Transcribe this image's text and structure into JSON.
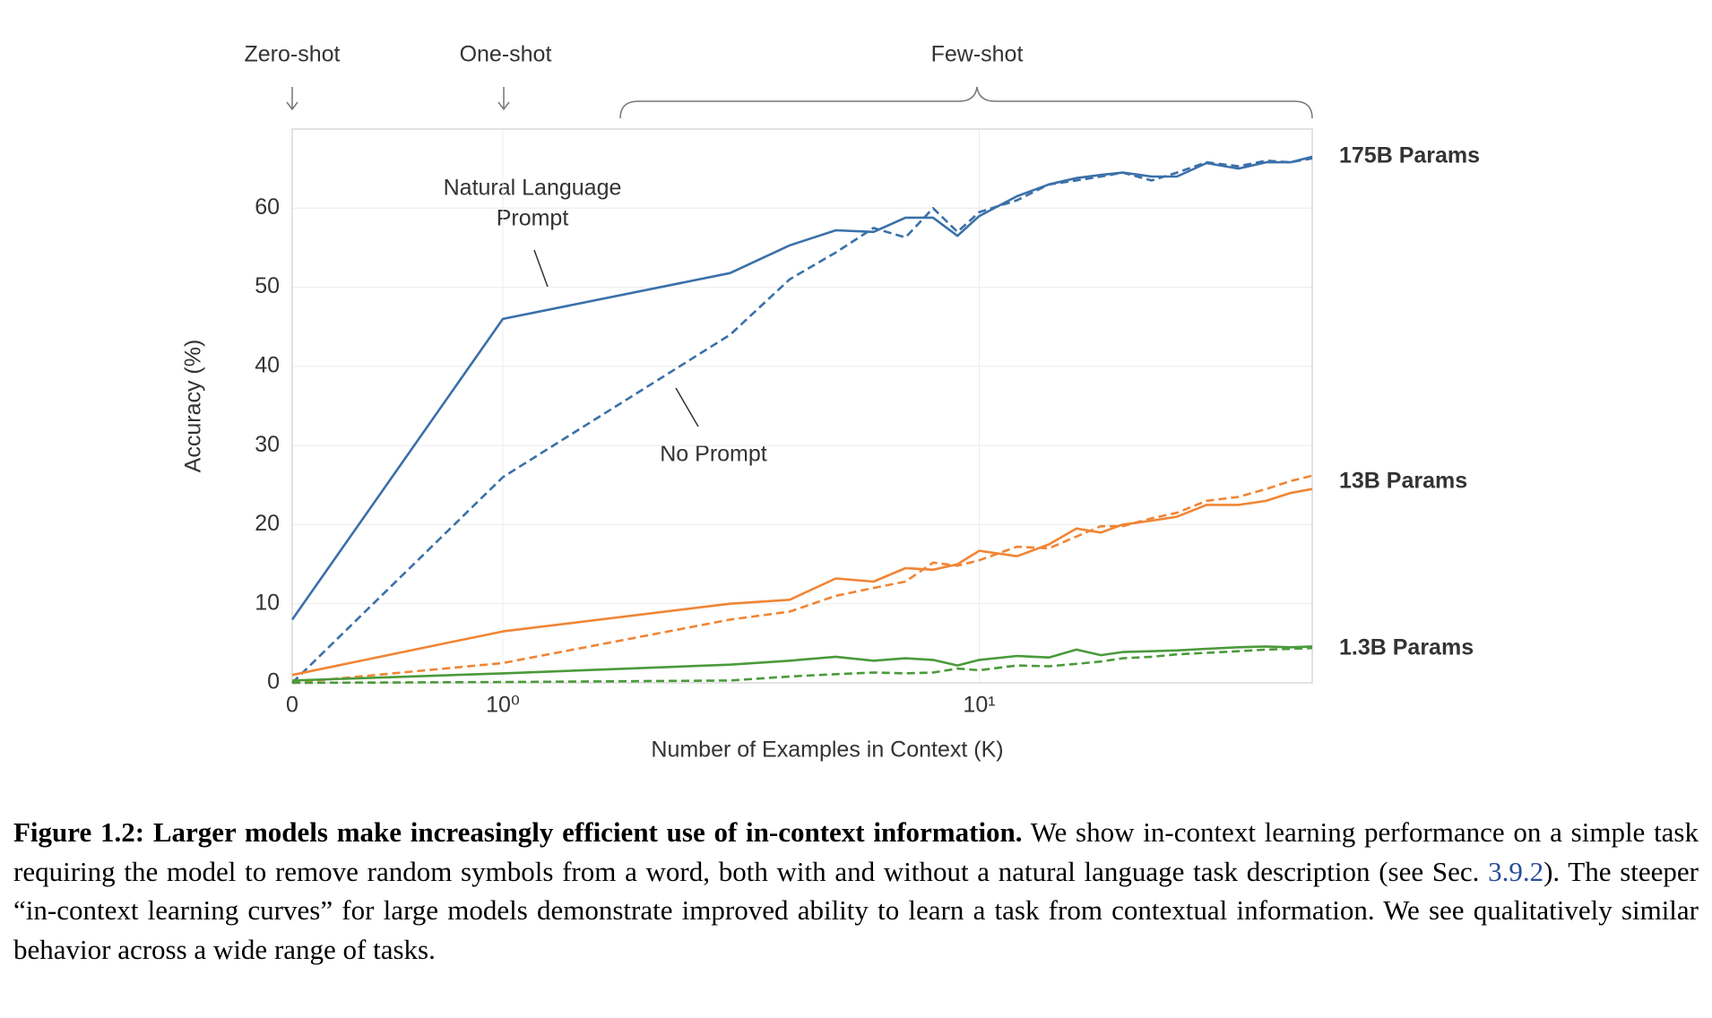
{
  "chart_data": {
    "type": "line",
    "y_label": "Accuracy (%)",
    "x_label": "Number of Examples in Context  (K)",
    "x_scale": "symlog",
    "x": [
      0,
      1,
      3,
      4,
      5,
      6,
      7,
      8,
      9,
      10,
      12,
      14,
      16,
      18,
      20,
      23,
      26,
      30,
      35,
      40,
      45,
      50
    ],
    "xlim": [
      0,
      50
    ],
    "xticks": [
      0,
      {
        "value": 1,
        "label": "10⁰"
      },
      {
        "value": 10,
        "label": "10¹"
      }
    ],
    "ylim": [
      0,
      70
    ],
    "yticks": [
      0,
      10,
      20,
      30,
      40,
      50,
      60
    ],
    "grid": true,
    "series": [
      {
        "name": "175B Params",
        "color": "#3b70a9",
        "label_color": "#5b8ec4",
        "values": [
          8,
          46,
          51.8,
          55.3,
          57.2,
          57,
          58.8,
          58.8,
          56.5,
          59,
          61.5,
          63,
          63.8,
          64.2,
          64.5,
          64,
          64,
          65.7,
          65,
          65.8,
          65.8,
          66.5
        ],
        "no_prompt_values": [
          0,
          26,
          44,
          51,
          54.4,
          57.5,
          56.3,
          60,
          57,
          59.5,
          61,
          63,
          63.5,
          64,
          64.5,
          63.5,
          64.5,
          65.8,
          65.3,
          66,
          65.8,
          66.3
        ]
      },
      {
        "name": "13B Params",
        "color": "#f08535",
        "label_color": "#f08535",
        "values": [
          1,
          6.5,
          10,
          10.5,
          13.2,
          12.8,
          14.5,
          14.3,
          15,
          16.7,
          16,
          17.5,
          19.5,
          19,
          20,
          20.5,
          21,
          22.5,
          22.5,
          23,
          24,
          24.5
        ],
        "no_prompt_values": [
          0,
          2.5,
          8,
          9,
          11,
          12,
          12.8,
          15.2,
          14.8,
          15.5,
          17.2,
          17,
          18.5,
          19.8,
          19.8,
          20.8,
          21.5,
          23,
          23.5,
          24.5,
          25.5,
          26.2
        ]
      },
      {
        "name": "1.3B Params",
        "color": "#4b9a3b",
        "label_color": "#4b9a3b",
        "values": [
          0.3,
          1.2,
          2.3,
          2.8,
          3.3,
          2.8,
          3.1,
          2.9,
          2.2,
          2.9,
          3.4,
          3.2,
          4.2,
          3.5,
          3.9,
          4,
          4.1,
          4.3,
          4.5,
          4.6,
          4.5,
          4.6
        ],
        "no_prompt_values": [
          0,
          0.1,
          0.3,
          0.8,
          1.1,
          1.3,
          1.2,
          1.3,
          1.8,
          1.6,
          2.2,
          2.1,
          2.4,
          2.7,
          3.1,
          3.3,
          3.6,
          3.8,
          4,
          4.2,
          4.3,
          4.4
        ]
      }
    ],
    "annotations": {
      "zero_shot": "Zero-shot",
      "one_shot": "One-shot",
      "few_shot": "Few-shot",
      "prompt_line1": "Natural Language",
      "prompt_line2": "Prompt",
      "no_prompt": "No Prompt"
    }
  },
  "caption": {
    "bold": "Figure 1.2: Larger models make increasingly efficient use of in-context information.",
    "text1": " We show in-context learning performance on a simple task requiring the model to remove random symbols from a word, both with and without a natural language task description (see Sec. ",
    "link": "3.9.2",
    "text2": "). The steeper “in-context learning curves” for large models demonstrate improved ability to learn a task from contextual information. We see qualitatively similar behavior across a wide range of tasks."
  }
}
